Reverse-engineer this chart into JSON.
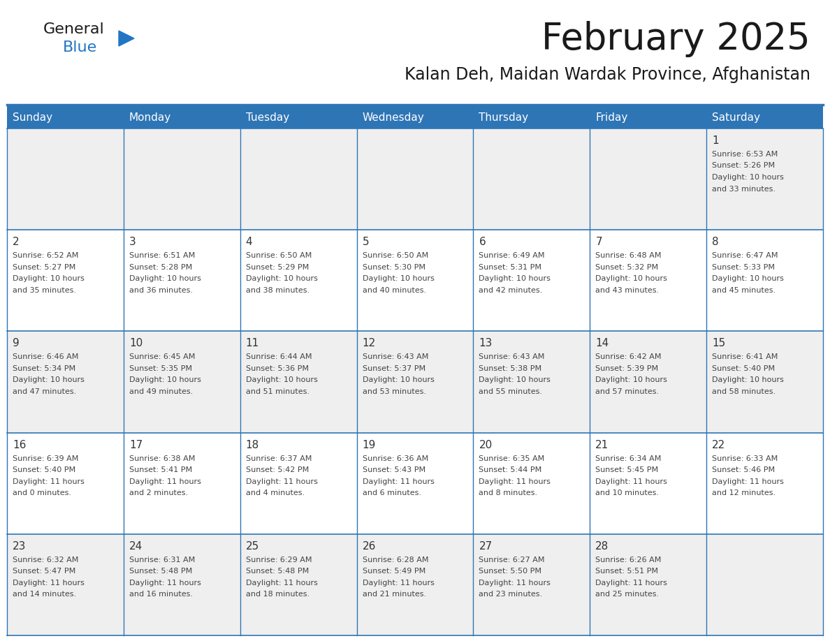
{
  "title": "February 2025",
  "subtitle": "Kalan Deh, Maidan Wardak Province, Afghanistan",
  "header_color": "#2E75B6",
  "header_text_color": "#FFFFFF",
  "row_colors": [
    "#EFEFEF",
    "#FFFFFF",
    "#EFEFEF",
    "#FFFFFF",
    "#EFEFEF"
  ],
  "border_color": "#2E75B6",
  "title_color": "#1a1a1a",
  "subtitle_color": "#1a1a1a",
  "day_number_color": "#333333",
  "text_color": "#444444",
  "day_headers": [
    "Sunday",
    "Monday",
    "Tuesday",
    "Wednesday",
    "Thursday",
    "Friday",
    "Saturday"
  ],
  "days": [
    {
      "day": 1,
      "col": 6,
      "row": 0,
      "sunrise": "6:53 AM",
      "sunset": "5:26 PM",
      "daylight": "10 hours and 33 minutes."
    },
    {
      "day": 2,
      "col": 0,
      "row": 1,
      "sunrise": "6:52 AM",
      "sunset": "5:27 PM",
      "daylight": "10 hours and 35 minutes."
    },
    {
      "day": 3,
      "col": 1,
      "row": 1,
      "sunrise": "6:51 AM",
      "sunset": "5:28 PM",
      "daylight": "10 hours and 36 minutes."
    },
    {
      "day": 4,
      "col": 2,
      "row": 1,
      "sunrise": "6:50 AM",
      "sunset": "5:29 PM",
      "daylight": "10 hours and 38 minutes."
    },
    {
      "day": 5,
      "col": 3,
      "row": 1,
      "sunrise": "6:50 AM",
      "sunset": "5:30 PM",
      "daylight": "10 hours and 40 minutes."
    },
    {
      "day": 6,
      "col": 4,
      "row": 1,
      "sunrise": "6:49 AM",
      "sunset": "5:31 PM",
      "daylight": "10 hours and 42 minutes."
    },
    {
      "day": 7,
      "col": 5,
      "row": 1,
      "sunrise": "6:48 AM",
      "sunset": "5:32 PM",
      "daylight": "10 hours and 43 minutes."
    },
    {
      "day": 8,
      "col": 6,
      "row": 1,
      "sunrise": "6:47 AM",
      "sunset": "5:33 PM",
      "daylight": "10 hours and 45 minutes."
    },
    {
      "day": 9,
      "col": 0,
      "row": 2,
      "sunrise": "6:46 AM",
      "sunset": "5:34 PM",
      "daylight": "10 hours and 47 minutes."
    },
    {
      "day": 10,
      "col": 1,
      "row": 2,
      "sunrise": "6:45 AM",
      "sunset": "5:35 PM",
      "daylight": "10 hours and 49 minutes."
    },
    {
      "day": 11,
      "col": 2,
      "row": 2,
      "sunrise": "6:44 AM",
      "sunset": "5:36 PM",
      "daylight": "10 hours and 51 minutes."
    },
    {
      "day": 12,
      "col": 3,
      "row": 2,
      "sunrise": "6:43 AM",
      "sunset": "5:37 PM",
      "daylight": "10 hours and 53 minutes."
    },
    {
      "day": 13,
      "col": 4,
      "row": 2,
      "sunrise": "6:43 AM",
      "sunset": "5:38 PM",
      "daylight": "10 hours and 55 minutes."
    },
    {
      "day": 14,
      "col": 5,
      "row": 2,
      "sunrise": "6:42 AM",
      "sunset": "5:39 PM",
      "daylight": "10 hours and 57 minutes."
    },
    {
      "day": 15,
      "col": 6,
      "row": 2,
      "sunrise": "6:41 AM",
      "sunset": "5:40 PM",
      "daylight": "10 hours and 58 minutes."
    },
    {
      "day": 16,
      "col": 0,
      "row": 3,
      "sunrise": "6:39 AM",
      "sunset": "5:40 PM",
      "daylight": "11 hours and 0 minutes."
    },
    {
      "day": 17,
      "col": 1,
      "row": 3,
      "sunrise": "6:38 AM",
      "sunset": "5:41 PM",
      "daylight": "11 hours and 2 minutes."
    },
    {
      "day": 18,
      "col": 2,
      "row": 3,
      "sunrise": "6:37 AM",
      "sunset": "5:42 PM",
      "daylight": "11 hours and 4 minutes."
    },
    {
      "day": 19,
      "col": 3,
      "row": 3,
      "sunrise": "6:36 AM",
      "sunset": "5:43 PM",
      "daylight": "11 hours and 6 minutes."
    },
    {
      "day": 20,
      "col": 4,
      "row": 3,
      "sunrise": "6:35 AM",
      "sunset": "5:44 PM",
      "daylight": "11 hours and 8 minutes."
    },
    {
      "day": 21,
      "col": 5,
      "row": 3,
      "sunrise": "6:34 AM",
      "sunset": "5:45 PM",
      "daylight": "11 hours and 10 minutes."
    },
    {
      "day": 22,
      "col": 6,
      "row": 3,
      "sunrise": "6:33 AM",
      "sunset": "5:46 PM",
      "daylight": "11 hours and 12 minutes."
    },
    {
      "day": 23,
      "col": 0,
      "row": 4,
      "sunrise": "6:32 AM",
      "sunset": "5:47 PM",
      "daylight": "11 hours and 14 minutes."
    },
    {
      "day": 24,
      "col": 1,
      "row": 4,
      "sunrise": "6:31 AM",
      "sunset": "5:48 PM",
      "daylight": "11 hours and 16 minutes."
    },
    {
      "day": 25,
      "col": 2,
      "row": 4,
      "sunrise": "6:29 AM",
      "sunset": "5:48 PM",
      "daylight": "11 hours and 18 minutes."
    },
    {
      "day": 26,
      "col": 3,
      "row": 4,
      "sunrise": "6:28 AM",
      "sunset": "5:49 PM",
      "daylight": "11 hours and 21 minutes."
    },
    {
      "day": 27,
      "col": 4,
      "row": 4,
      "sunrise": "6:27 AM",
      "sunset": "5:50 PM",
      "daylight": "11 hours and 23 minutes."
    },
    {
      "day": 28,
      "col": 5,
      "row": 4,
      "sunrise": "6:26 AM",
      "sunset": "5:51 PM",
      "daylight": "11 hours and 25 minutes."
    }
  ],
  "logo_text1": "General",
  "logo_text2": "Blue",
  "logo_color1": "#1a1a1a",
  "logo_color2": "#2176C4",
  "logo_triangle_color": "#2176C4",
  "fig_width": 11.88,
  "fig_height": 9.18,
  "dpi": 100
}
